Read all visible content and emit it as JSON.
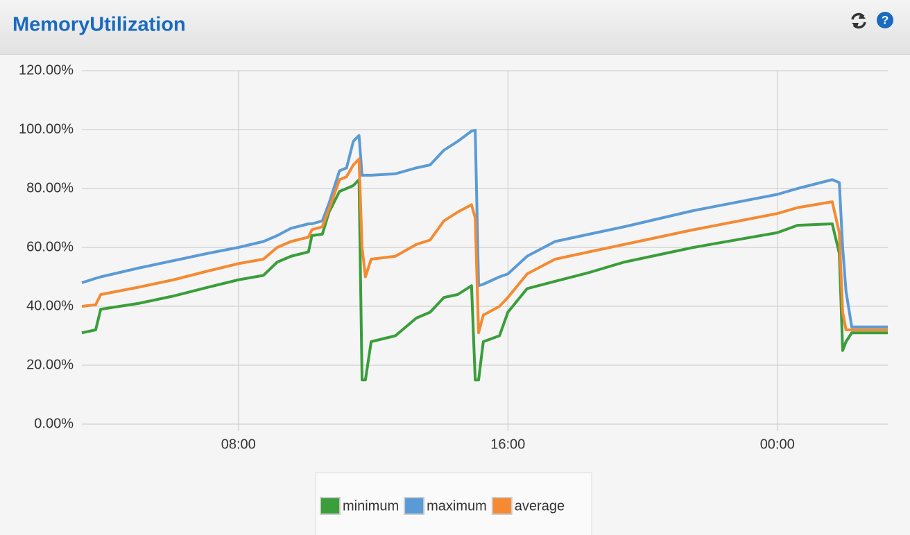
{
  "chart_data": {
    "type": "line",
    "title": "MemoryUtilization",
    "x": [
      3.35,
      3.76,
      3.91,
      5.04,
      6.07,
      7.1,
      8.0,
      8.74,
      9.15,
      9.56,
      10.08,
      10.18,
      10.49,
      10.69,
      11.0,
      11.21,
      11.41,
      11.58,
      11.67,
      11.77,
      11.94,
      12.66,
      13.28,
      13.69,
      14.1,
      14.51,
      14.92,
      15.03,
      15.13,
      15.27,
      15.75,
      16.0,
      16.57,
      17.4,
      18.42,
      19.45,
      21.51,
      24.0,
      24.6,
      25.63,
      25.84,
      25.94,
      26.04,
      26.21,
      27.28
    ],
    "series": [
      {
        "name": "minimum",
        "color": "#3a9e3a",
        "values": [
          31,
          32,
          39,
          41,
          43.5,
          46.5,
          49,
          50.5,
          55,
          57,
          58.5,
          64,
          64.5,
          72,
          79,
          80,
          81,
          83,
          15,
          15,
          28,
          30,
          36,
          38,
          43,
          44,
          47,
          15,
          15,
          28,
          30,
          38,
          46,
          48.5,
          51.5,
          55,
          60,
          65,
          67.5,
          68,
          58,
          25,
          28,
          31,
          31
        ]
      },
      {
        "name": "maximum",
        "color": "#5b9bd5",
        "values": [
          48,
          49.5,
          50,
          53,
          55.5,
          58,
          60,
          62,
          64,
          66.5,
          68,
          68,
          69,
          75,
          86,
          87,
          96,
          98,
          84.5,
          84.5,
          84.5,
          85,
          87,
          88,
          93,
          96,
          99.5,
          99.8,
          47,
          47.5,
          50,
          51,
          57,
          62,
          64.5,
          67,
          72.5,
          78,
          80,
          83,
          82,
          60,
          45,
          33,
          33
        ]
      },
      {
        "name": "average",
        "color": "#f58a32",
        "values": [
          40,
          40.5,
          44,
          46.5,
          49,
          52,
          54.5,
          56,
          60,
          62,
          63.5,
          66,
          67,
          73,
          83,
          84,
          88,
          90,
          60,
          50,
          56,
          57,
          61,
          62.5,
          69,
          72,
          74.5,
          70,
          31,
          37,
          40,
          43,
          51,
          56,
          58.5,
          61,
          66,
          71.5,
          73.5,
          75.5,
          65,
          38,
          32,
          32,
          32
        ]
      }
    ],
    "xlim": [
      3.35,
      27.28
    ],
    "xticks": [
      {
        "value": 8,
        "label": "08:00"
      },
      {
        "value": 16,
        "label": "16:00"
      },
      {
        "value": 24,
        "label": "00:00"
      }
    ],
    "ylim": [
      0,
      120
    ],
    "yticks": [
      {
        "value": 0,
        "label": "0.00%"
      },
      {
        "value": 20,
        "label": "20.00%"
      },
      {
        "value": 40,
        "label": "40.00%"
      },
      {
        "value": 60,
        "label": "60.00%"
      },
      {
        "value": 80,
        "label": "80.00%"
      },
      {
        "value": 100,
        "label": "100.00%"
      },
      {
        "value": 120,
        "label": "120.00%"
      }
    ],
    "grid": true,
    "legend": "bottom"
  }
}
